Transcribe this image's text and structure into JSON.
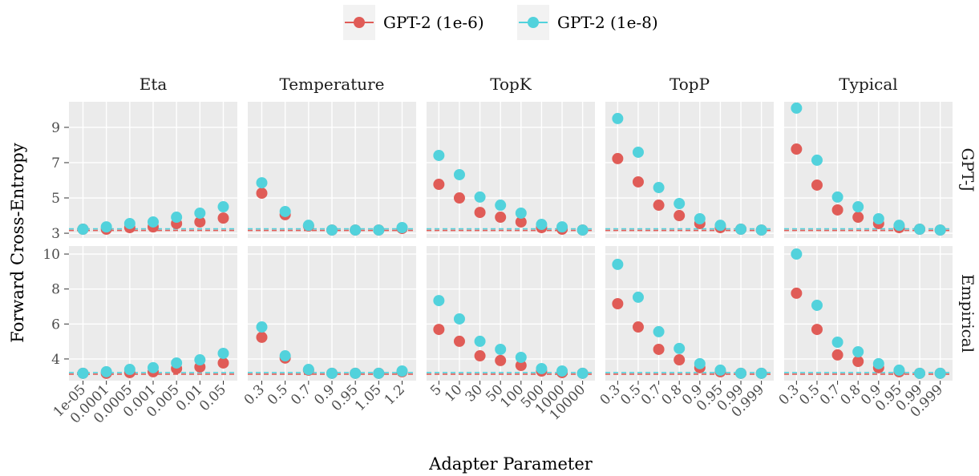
{
  "chart_data": {
    "type": "scatter",
    "xlabel": "Adapter Parameter",
    "ylabel": "Forward Cross-Entropy",
    "grid": true,
    "legend_position": "top",
    "legend": [
      {
        "name": "GPT-2 (1e-6)",
        "color": "#e05c57"
      },
      {
        "name": "GPT-2 (1e-8)",
        "color": "#52d2dc"
      }
    ],
    "columns": [
      {
        "title": "Eta",
        "categories": [
          "1e-05",
          "0.0001",
          "0.0005",
          "0.001",
          "0.005",
          "0.01",
          "0.05"
        ]
      },
      {
        "title": "Temperature",
        "categories": [
          "0.3",
          "0.5",
          "0.7",
          "0.9",
          "0.95",
          "1.05",
          "1.2"
        ]
      },
      {
        "title": "TopK",
        "categories": [
          "5",
          "10",
          "30",
          "50",
          "100",
          "500",
          "1000",
          "10000"
        ]
      },
      {
        "title": "TopP",
        "categories": [
          "0.3",
          "0.5",
          "0.7",
          "0.8",
          "0.9",
          "0.95",
          "0.99",
          "0.999"
        ]
      },
      {
        "title": "Typical",
        "categories": [
          "0.3",
          "0.5",
          "0.7",
          "0.8",
          "0.9",
          "0.95",
          "0.99",
          "0.999"
        ]
      }
    ],
    "rows": [
      {
        "label": "GPT-J",
        "ylim": [
          2.73,
          10.45
        ],
        "yticks": [
          3,
          5,
          7,
          9
        ],
        "panels": [
          {
            "series": [
              {
                "values": [
                  3.23,
                  3.23,
                  3.32,
                  3.36,
                  3.55,
                  3.64,
                  3.86
                ],
                "baseline": 3.16
              },
              {
                "values": [
                  3.23,
                  3.36,
                  3.55,
                  3.64,
                  3.91,
                  4.14,
                  4.5
                ],
                "baseline": 3.25
              }
            ]
          },
          {
            "series": [
              {
                "values": [
                  5.27,
                  4.05,
                  3.41,
                  3.18,
                  3.18,
                  3.18,
                  3.27
                ],
                "baseline": 3.16
              },
              {
                "values": [
                  5.86,
                  4.23,
                  3.45,
                  3.18,
                  3.18,
                  3.18,
                  3.32
                ],
                "baseline": 3.25
              }
            ]
          },
          {
            "series": [
              {
                "values": [
                  5.77,
                  5.0,
                  4.18,
                  3.91,
                  3.64,
                  3.32,
                  3.23,
                  3.18
                ],
                "baseline": 3.16
              },
              {
                "values": [
                  7.41,
                  6.32,
                  5.05,
                  4.59,
                  4.14,
                  3.5,
                  3.36,
                  3.18
                ],
                "baseline": 3.25
              }
            ]
          },
          {
            "series": [
              {
                "values": [
                  7.23,
                  5.91,
                  4.59,
                  4.0,
                  3.55,
                  3.32,
                  3.23,
                  3.18
                ],
                "baseline": 3.16
              },
              {
                "values": [
                  9.5,
                  7.59,
                  5.59,
                  4.68,
                  3.82,
                  3.45,
                  3.23,
                  3.18
                ],
                "baseline": 3.25
              }
            ]
          },
          {
            "series": [
              {
                "values": [
                  7.77,
                  5.73,
                  4.32,
                  3.91,
                  3.55,
                  3.32,
                  3.23,
                  3.18
                ],
                "baseline": 3.16
              },
              {
                "values": [
                  10.09,
                  7.14,
                  5.05,
                  4.5,
                  3.82,
                  3.45,
                  3.23,
                  3.18
                ],
                "baseline": 3.25
              }
            ]
          }
        ]
      },
      {
        "label": "Empirical",
        "ylim": [
          2.76,
          10.46
        ],
        "yticks": [
          4,
          6,
          8,
          10
        ],
        "panels": [
          {
            "series": [
              {
                "values": [
                  3.18,
                  3.18,
                  3.22,
                  3.27,
                  3.45,
                  3.54,
                  3.77
                ],
                "baseline": 3.13
              },
              {
                "values": [
                  3.18,
                  3.27,
                  3.4,
                  3.5,
                  3.77,
                  3.95,
                  4.32
                ],
                "baseline": 3.22
              }
            ]
          },
          {
            "series": [
              {
                "values": [
                  5.24,
                  4.05,
                  3.36,
                  3.18,
                  3.18,
                  3.18,
                  3.27
                ],
                "baseline": 3.13
              },
              {
                "values": [
                  5.83,
                  4.18,
                  3.4,
                  3.18,
                  3.18,
                  3.18,
                  3.31
                ],
                "baseline": 3.22
              }
            ]
          },
          {
            "series": [
              {
                "values": [
                  5.69,
                  5.01,
                  4.18,
                  3.91,
                  3.63,
                  3.31,
                  3.22,
                  3.18
                ],
                "baseline": 3.13
              },
              {
                "values": [
                  7.34,
                  6.29,
                  5.01,
                  4.55,
                  4.09,
                  3.45,
                  3.31,
                  3.18
                ],
                "baseline": 3.22
              }
            ]
          },
          {
            "series": [
              {
                "values": [
                  7.16,
                  5.83,
                  4.55,
                  3.95,
                  3.5,
                  3.27,
                  3.18,
                  3.18
                ],
                "baseline": 3.13
              },
              {
                "values": [
                  9.41,
                  7.53,
                  5.56,
                  4.6,
                  3.73,
                  3.36,
                  3.18,
                  3.18
                ],
                "baseline": 3.22
              }
            ]
          },
          {
            "series": [
              {
                "values": [
                  7.76,
                  5.69,
                  4.23,
                  3.86,
                  3.5,
                  3.27,
                  3.18,
                  3.18
                ],
                "baseline": 3.13
              },
              {
                "values": [
                  10.0,
                  7.07,
                  4.96,
                  4.41,
                  3.73,
                  3.36,
                  3.18,
                  3.18
                ],
                "baseline": 3.22
              }
            ]
          }
        ]
      }
    ]
  }
}
